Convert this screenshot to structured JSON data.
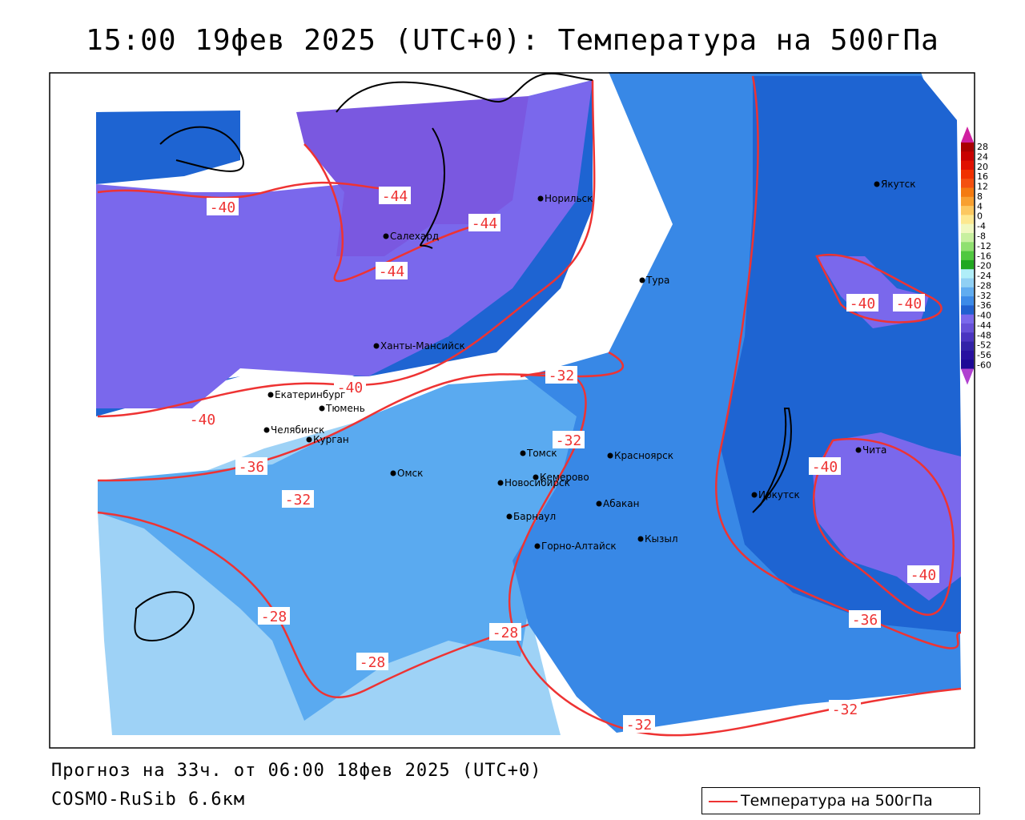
{
  "title": "15:00 19фев 2025 (UTC+0): Температура на 500гПа",
  "footer": {
    "forecast": "Прогноз на 33ч. от 06:00 18фев 2025 (UTC+0)",
    "model": "COSMO-RuSib 6.6км"
  },
  "legend": {
    "label": "Температура на 500гПа",
    "line_color": "#ee3333"
  },
  "colorbar": {
    "ticks": [
      "28",
      "24",
      "20",
      "16",
      "12",
      "8",
      "4",
      "0",
      "-4",
      "-8",
      "-12",
      "-16",
      "-20",
      "-24",
      "-28",
      "-32",
      "-36",
      "-40",
      "-44",
      "-48",
      "-52",
      "-56",
      "-60"
    ],
    "colors": [
      "#aa0000",
      "#c80000",
      "#e01000",
      "#f03000",
      "#f45010",
      "#f47a10",
      "#f8a030",
      "#fcc860",
      "#fde890",
      "#f0f8c0",
      "#c8f0a0",
      "#90e070",
      "#50c840",
      "#20a820",
      "#b0eef8",
      "#90d0f4",
      "#60acf0",
      "#3c8ae8",
      "#2060d0",
      "#7a68ec",
      "#6650d8",
      "#4a34c0",
      "#3222a8",
      "#2810a0",
      "#1c0896"
    ],
    "top_color": "#d020a0",
    "bottom_color": "#b040d0"
  },
  "contour_labels": [
    {
      "text": "-40"
    },
    {
      "text": "-44"
    },
    {
      "text": "-44"
    },
    {
      "text": "-44"
    },
    {
      "text": "-40"
    },
    {
      "text": "-40"
    },
    {
      "text": "-32"
    },
    {
      "text": "-32"
    },
    {
      "text": "-36"
    },
    {
      "text": "-32"
    },
    {
      "text": "-40"
    },
    {
      "text": "-40"
    },
    {
      "text": "-40"
    },
    {
      "text": "-40"
    },
    {
      "text": "-36"
    },
    {
      "text": "-28"
    },
    {
      "text": "-28"
    },
    {
      "text": "-28"
    },
    {
      "text": "-32"
    },
    {
      "text": "-32"
    }
  ],
  "cities": [
    "Норильск",
    "Якутск",
    "Салехард",
    "Тура",
    "Ханты-Мансийск",
    "Екатеринбург",
    "Тюмень",
    "Челябинск",
    "Курган",
    "Омск",
    "Томск",
    "Новосибирск",
    "Кемерово",
    "Красноярск",
    "Барнаул",
    "Абакан",
    "Горно-Алтайск",
    "Кызыл",
    "Иркутск",
    "Чита"
  ]
}
